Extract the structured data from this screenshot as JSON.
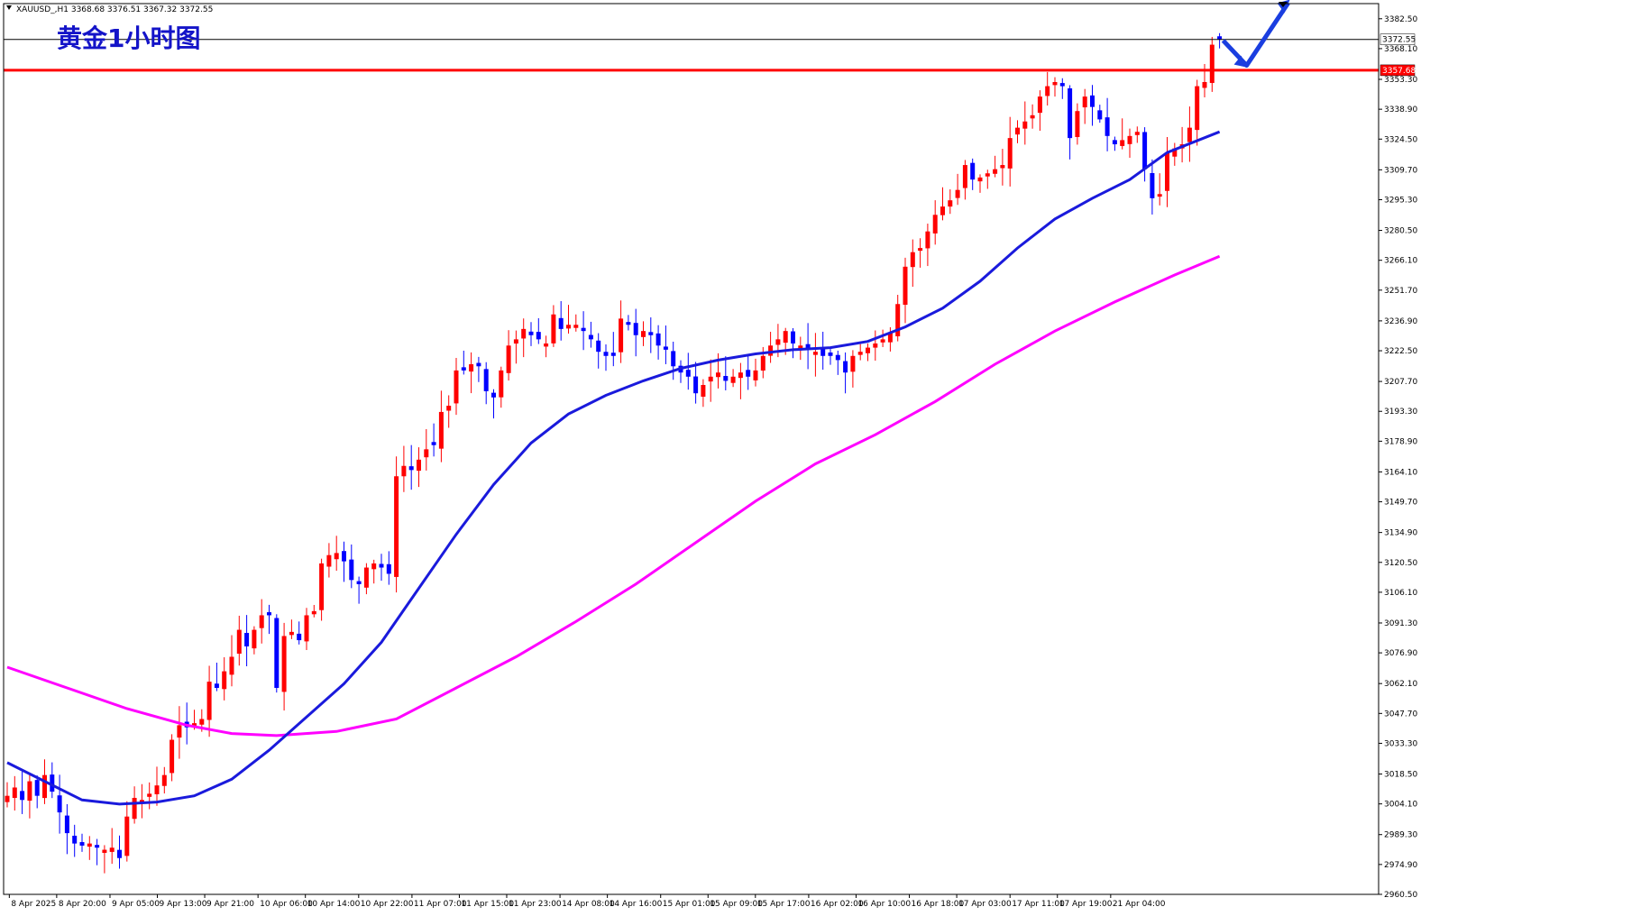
{
  "header": {
    "symbol_info": "XAUUSD_,H1  3368.68 3376.51 3367.32 3372.55",
    "chart_title": "黄金1小时图"
  },
  "colors": {
    "bull": "#ff0000",
    "bear": "#0000ff",
    "ma_fast": "#1a1adc",
    "ma_slow": "#ff00ff",
    "resistance": "#ff0000",
    "arrow": "#1a3ee0",
    "frame": "#000000"
  },
  "chart_data": {
    "type": "candlestick",
    "title": "黄金1小时图",
    "symbol": "XAUUSD_",
    "timeframe": "H1",
    "ylim": [
      2960.5,
      3389.8
    ],
    "y_ticks": [
      3382.5,
      3368.1,
      3353.3,
      3338.9,
      3324.5,
      3309.7,
      3295.3,
      3280.5,
      3266.1,
      3251.7,
      3236.9,
      3222.5,
      3207.7,
      3193.3,
      3178.9,
      3164.1,
      3149.7,
      3134.9,
      3120.5,
      3106.1,
      3091.3,
      3076.9,
      3062.1,
      3047.7,
      3033.3,
      3018.5,
      3004.1,
      2989.3,
      2974.9,
      2960.5
    ],
    "x_labels": [
      "8 Apr 2025",
      "8 Apr 20:00",
      "9 Apr 05:00",
      "9 Apr 13:00",
      "9 Apr 21:00",
      "10 Apr 06:00",
      "10 Apr 14:00",
      "10 Apr 22:00",
      "11 Apr 07:00",
      "11 Apr 15:00",
      "11 Apr 23:00",
      "14 Apr 08:00",
      "14 Apr 16:00",
      "15 Apr 01:00",
      "15 Apr 09:00",
      "15 Apr 17:00",
      "16 Apr 02:00",
      "16 Apr 10:00",
      "16 Apr 18:00",
      "17 Apr 03:00",
      "17 Apr 11:00",
      "17 Apr 19:00",
      "21 Apr 04:00"
    ],
    "current_price": 3372.55,
    "resistance_price": 3357.68,
    "grid": false,
    "anchors": [
      [
        0,
        3008
      ],
      [
        1,
        3012
      ],
      [
        2,
        3006
      ],
      [
        3,
        3015
      ],
      [
        4,
        3008
      ],
      [
        5,
        3018
      ],
      [
        6,
        3010
      ],
      [
        7,
        3000
      ],
      [
        8,
        2990
      ],
      [
        9,
        2985
      ],
      [
        10,
        2984
      ],
      [
        11,
        2985
      ],
      [
        12,
        2983
      ],
      [
        13,
        2982
      ],
      [
        14,
        2983
      ],
      [
        15,
        2978
      ],
      [
        16,
        2998
      ],
      [
        17,
        3007
      ],
      [
        18,
        3006
      ],
      [
        19,
        3009
      ],
      [
        20,
        3013
      ],
      [
        21,
        3018
      ],
      [
        22,
        3035
      ],
      [
        23,
        3042
      ],
      [
        24,
        3041
      ],
      [
        25,
        3043
      ],
      [
        26,
        3045
      ],
      [
        27,
        3063
      ],
      [
        28,
        3060
      ],
      [
        29,
        3068
      ],
      [
        30,
        3075
      ],
      [
        31,
        3088
      ],
      [
        32,
        3080
      ],
      [
        33,
        3088
      ],
      [
        34,
        3095
      ],
      [
        35,
        3095
      ],
      [
        36,
        3060
      ],
      [
        37,
        3085
      ],
      [
        38,
        3087
      ],
      [
        39,
        3083
      ],
      [
        40,
        3095
      ],
      [
        41,
        3097
      ],
      [
        42,
        3120
      ],
      [
        43,
        3124
      ],
      [
        44,
        3125
      ],
      [
        45,
        3121
      ],
      [
        46,
        3112
      ],
      [
        47,
        3110
      ],
      [
        48,
        3118
      ],
      [
        49,
        3120
      ],
      [
        50,
        3118
      ],
      [
        51,
        3115
      ],
      [
        52,
        3162
      ],
      [
        53,
        3167
      ],
      [
        54,
        3165
      ],
      [
        55,
        3170
      ],
      [
        56,
        3175
      ],
      [
        57,
        3177
      ],
      [
        58,
        3193
      ],
      [
        59,
        3196
      ],
      [
        60,
        3213
      ],
      [
        61,
        3213
      ],
      [
        62,
        3216
      ],
      [
        63,
        3215
      ],
      [
        64,
        3203
      ],
      [
        65,
        3200
      ],
      [
        66,
        3213
      ],
      [
        67,
        3225
      ],
      [
        68,
        3228
      ],
      [
        69,
        3233
      ],
      [
        70,
        3230
      ],
      [
        71,
        3228
      ],
      [
        72,
        3226
      ],
      [
        73,
        3240
      ],
      [
        74,
        3233
      ],
      [
        75,
        3235
      ],
      [
        76,
        3235
      ],
      [
        77,
        3232
      ],
      [
        78,
        3228
      ],
      [
        79,
        3222
      ],
      [
        80,
        3220
      ],
      [
        81,
        3220
      ],
      [
        82,
        3238
      ],
      [
        83,
        3235
      ],
      [
        84,
        3230
      ],
      [
        85,
        3232
      ],
      [
        86,
        3230
      ],
      [
        87,
        3225
      ],
      [
        88,
        3223
      ],
      [
        89,
        3215
      ],
      [
        90,
        3212
      ],
      [
        91,
        3210
      ],
      [
        92,
        3202
      ],
      [
        93,
        3206
      ],
      [
        94,
        3210
      ],
      [
        95,
        3212
      ],
      [
        96,
        3208
      ],
      [
        97,
        3210
      ],
      [
        98,
        3212
      ],
      [
        99,
        3210
      ],
      [
        100,
        3213
      ],
      [
        101,
        3220
      ],
      [
        102,
        3225
      ],
      [
        103,
        3228
      ],
      [
        104,
        3232
      ],
      [
        105,
        3226
      ],
      [
        106,
        3225
      ],
      [
        107,
        3223
      ],
      [
        108,
        3222
      ],
      [
        109,
        3220
      ],
      [
        110,
        3220
      ],
      [
        111,
        3218
      ],
      [
        112,
        3212
      ],
      [
        113,
        3220
      ],
      [
        114,
        3222
      ],
      [
        115,
        3224
      ],
      [
        116,
        3226
      ],
      [
        117,
        3228
      ],
      [
        118,
        3231
      ],
      [
        119,
        3245
      ],
      [
        120,
        3263
      ],
      [
        121,
        3270
      ],
      [
        122,
        3272
      ],
      [
        123,
        3280
      ],
      [
        124,
        3288
      ],
      [
        125,
        3292
      ],
      [
        126,
        3295
      ],
      [
        127,
        3300
      ],
      [
        128,
        3312
      ],
      [
        129,
        3305
      ],
      [
        130,
        3306
      ],
      [
        131,
        3308
      ],
      [
        132,
        3310
      ],
      [
        133,
        3312
      ],
      [
        134,
        3325
      ],
      [
        135,
        3330
      ],
      [
        136,
        3333
      ],
      [
        137,
        3336
      ],
      [
        138,
        3345
      ],
      [
        139,
        3350
      ],
      [
        140,
        3352
      ],
      [
        141,
        3350
      ],
      [
        142,
        3325
      ],
      [
        143,
        3338
      ],
      [
        144,
        3345
      ],
      [
        145,
        3340
      ],
      [
        146,
        3334
      ],
      [
        147,
        3326
      ],
      [
        148,
        3322
      ],
      [
        149,
        3324
      ],
      [
        150,
        3326
      ],
      [
        151,
        3328
      ],
      [
        152,
        3310
      ],
      [
        153,
        3296
      ],
      [
        154,
        3298
      ],
      [
        155,
        3318
      ],
      [
        156,
        3320
      ],
      [
        157,
        3322
      ],
      [
        158,
        3330
      ],
      [
        159,
        3350
      ],
      [
        160,
        3352
      ],
      [
        161,
        3370
      ],
      [
        162,
        3373
      ]
    ],
    "series": [
      {
        "type": "moving_average",
        "points": [
          [
            0,
            3024
          ],
          [
            5,
            3015
          ],
          [
            10,
            3006
          ],
          [
            15,
            3004
          ],
          [
            20,
            3005
          ],
          [
            25,
            3008
          ],
          [
            30,
            3016
          ],
          [
            35,
            3030
          ],
          [
            40,
            3046
          ],
          [
            45,
            3062
          ],
          [
            50,
            3082
          ],
          [
            55,
            3108
          ],
          [
            60,
            3134
          ],
          [
            65,
            3158
          ],
          [
            70,
            3178
          ],
          [
            75,
            3192
          ],
          [
            80,
            3201
          ],
          [
            85,
            3208
          ],
          [
            90,
            3214
          ],
          [
            95,
            3218
          ],
          [
            100,
            3221
          ],
          [
            105,
            3223
          ],
          [
            110,
            3224
          ],
          [
            115,
            3227
          ],
          [
            120,
            3234
          ],
          [
            125,
            3243
          ],
          [
            130,
            3256
          ],
          [
            135,
            3272
          ],
          [
            140,
            3286
          ],
          [
            145,
            3296
          ],
          [
            150,
            3305
          ],
          [
            155,
            3318
          ],
          [
            162,
            3328
          ]
        ]
      },
      {
        "type": "moving_average",
        "points": [
          [
            0,
            3070
          ],
          [
            8,
            3060
          ],
          [
            16,
            3050
          ],
          [
            24,
            3042
          ],
          [
            30,
            3038
          ],
          [
            36,
            3037
          ],
          [
            44,
            3039
          ],
          [
            52,
            3045
          ],
          [
            60,
            3060
          ],
          [
            68,
            3075
          ],
          [
            76,
            3092
          ],
          [
            84,
            3110
          ],
          [
            92,
            3130
          ],
          [
            100,
            3150
          ],
          [
            108,
            3168
          ],
          [
            116,
            3182
          ],
          [
            124,
            3198
          ],
          [
            132,
            3216
          ],
          [
            140,
            3232
          ],
          [
            148,
            3246
          ],
          [
            156,
            3259
          ],
          [
            162,
            3268
          ]
        ]
      }
    ]
  }
}
